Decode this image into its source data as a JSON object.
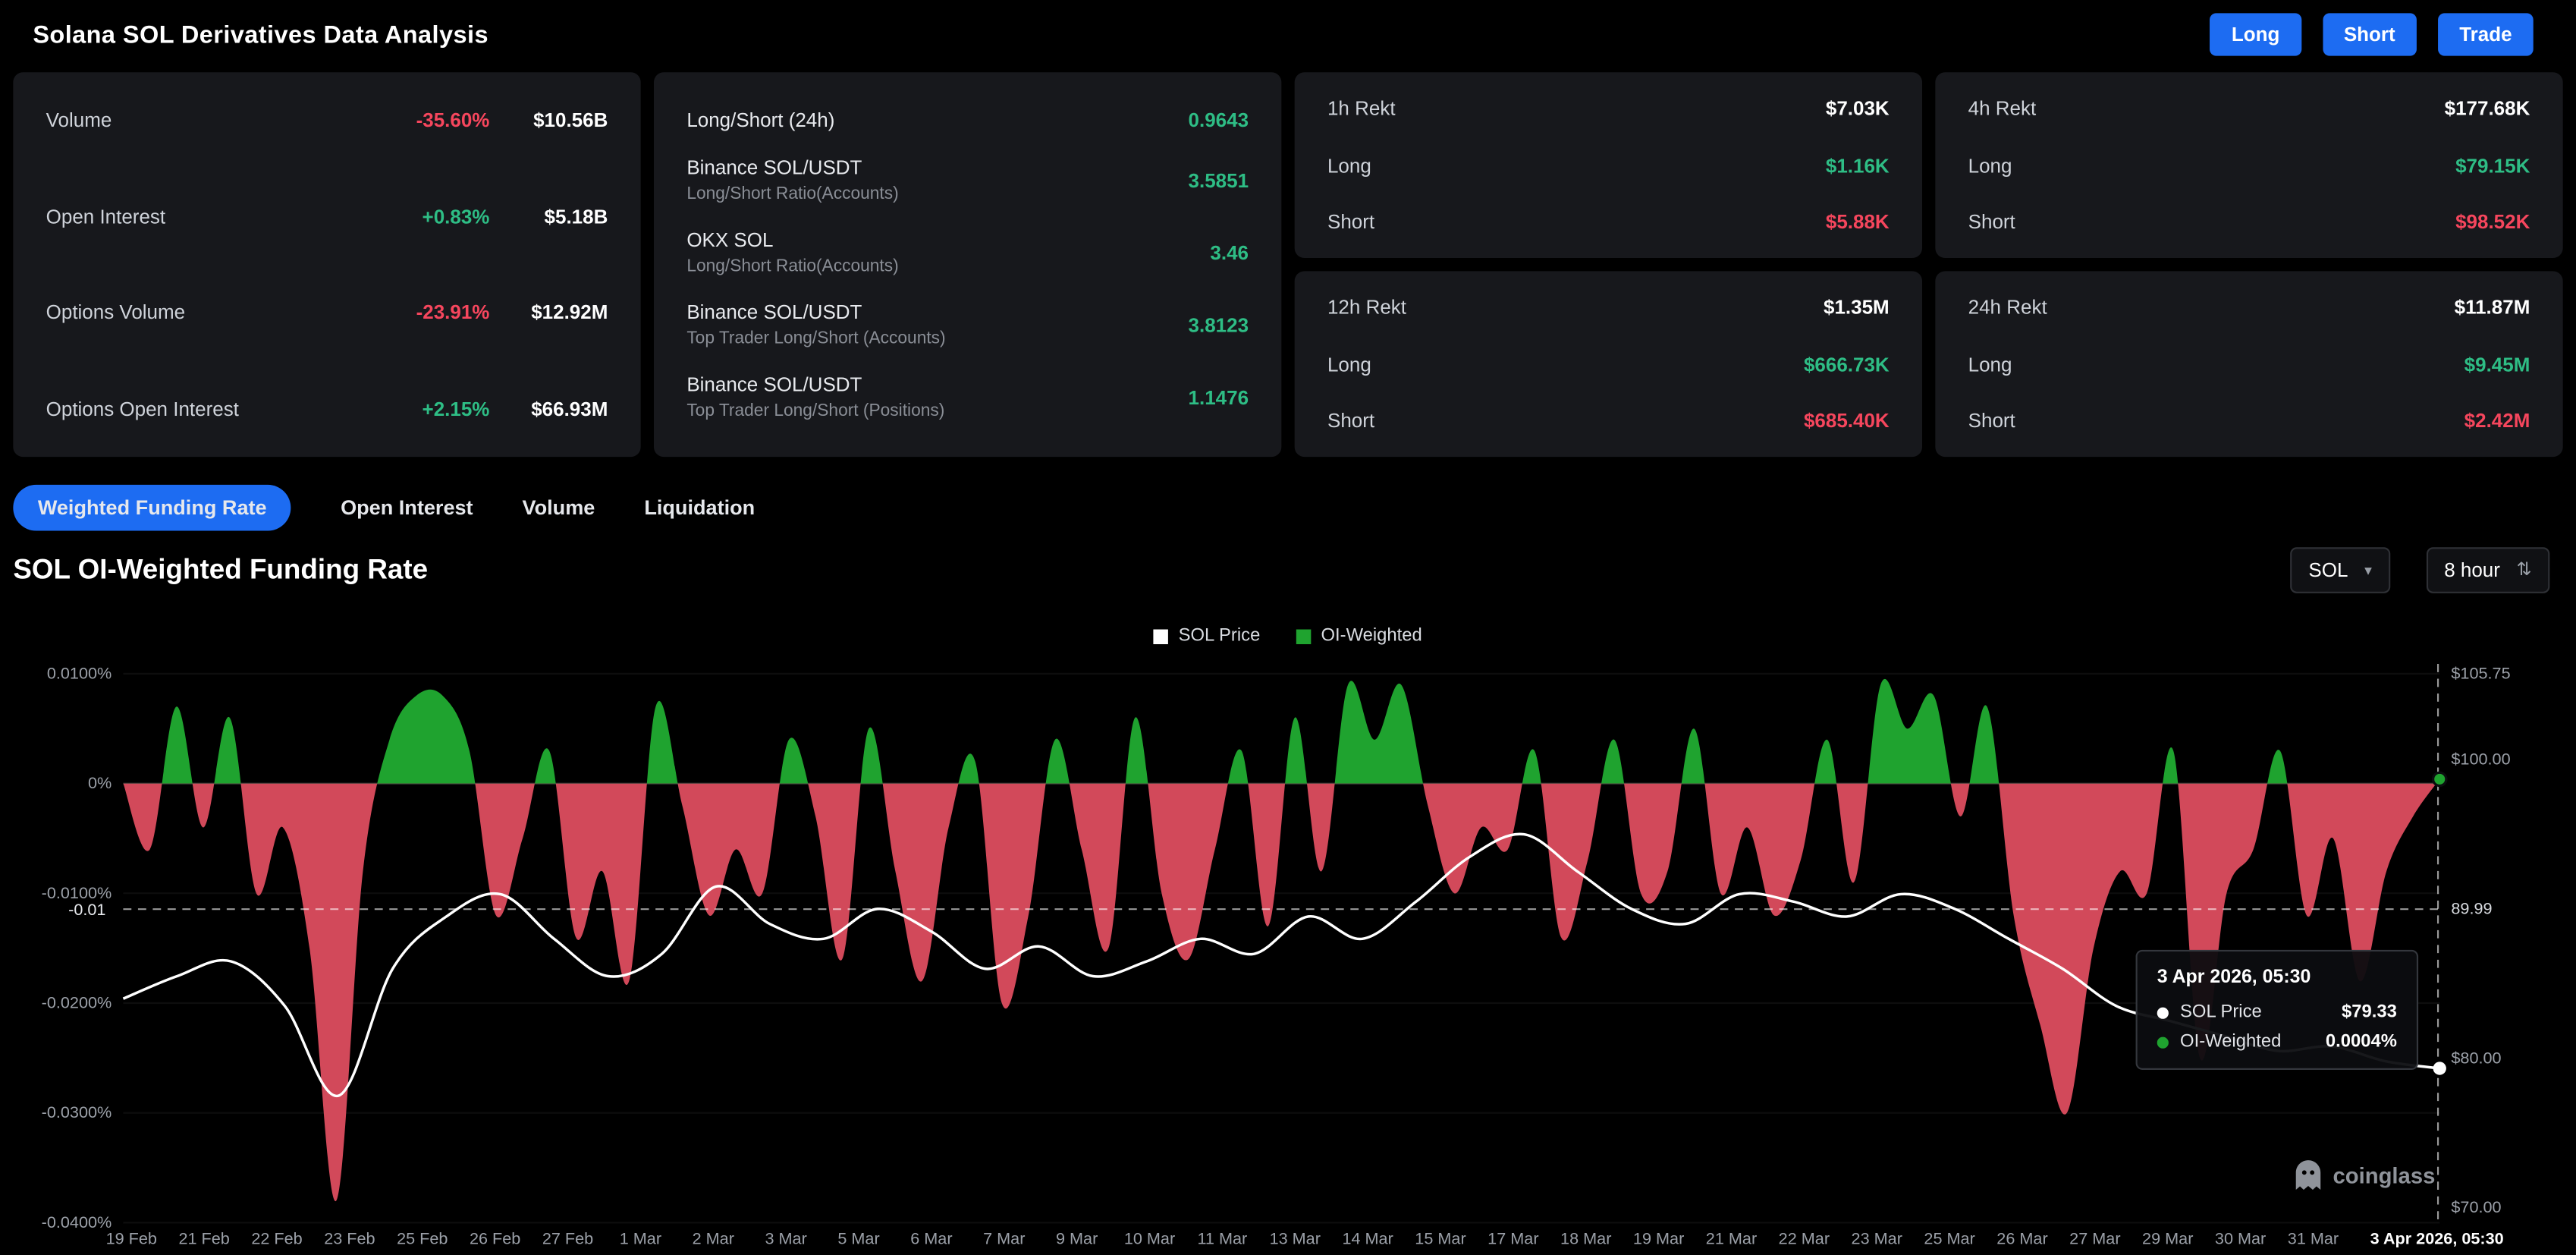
{
  "header": {
    "title": "Solana SOL Derivatives Data Analysis",
    "buttons": [
      {
        "label": "Long"
      },
      {
        "label": "Short"
      },
      {
        "label": "Trade"
      }
    ]
  },
  "stats": {
    "rows": [
      {
        "label": "Volume",
        "change": "-35.60%",
        "dir": "neg",
        "value": "$10.56B"
      },
      {
        "label": "Open Interest",
        "change": "+0.83%",
        "dir": "pos",
        "value": "$5.18B"
      },
      {
        "label": "Options Volume",
        "change": "-23.91%",
        "dir": "neg",
        "value": "$12.92M"
      },
      {
        "label": "Options Open Interest",
        "change": "+2.15%",
        "dir": "pos",
        "value": "$66.93M"
      }
    ]
  },
  "ratios": {
    "rows": [
      {
        "label": "Long/Short (24h)",
        "sublabel": "",
        "value": "0.9643"
      },
      {
        "label": "Binance SOL/USDT",
        "sublabel": "Long/Short Ratio(Accounts)",
        "value": "3.5851"
      },
      {
        "label": "OKX SOL",
        "sublabel": "Long/Short Ratio(Accounts)",
        "value": "3.46"
      },
      {
        "label": "Binance SOL/USDT",
        "sublabel": "Top Trader Long/Short (Accounts)",
        "value": "3.8123"
      },
      {
        "label": "Binance SOL/USDT",
        "sublabel": "Top Trader Long/Short (Positions)",
        "value": "1.1476"
      }
    ]
  },
  "liquidations": {
    "long_label": "Long",
    "short_label": "Short",
    "cards": [
      {
        "title": "1h Rekt",
        "total": "$7.03K",
        "long": "$1.16K",
        "short": "$5.88K"
      },
      {
        "title": "4h Rekt",
        "total": "$177.68K",
        "long": "$79.15K",
        "short": "$98.52K"
      },
      {
        "title": "12h Rekt",
        "total": "$1.35M",
        "long": "$666.73K",
        "short": "$685.40K"
      },
      {
        "title": "24h Rekt",
        "total": "$11.87M",
        "long": "$9.45M",
        "short": "$2.42M"
      }
    ]
  },
  "tabs": [
    {
      "label": "Weighted Funding Rate",
      "active": true
    },
    {
      "label": "Open Interest"
    },
    {
      "label": "Volume"
    },
    {
      "label": "Liquidation"
    }
  ],
  "section": {
    "title": "SOL OI-Weighted Funding Rate",
    "coin": "SOL",
    "interval": "8 hour"
  },
  "icons": {
    "caret_down": "▾",
    "caret_updown": "⇅"
  },
  "chart_data": {
    "type": "area+line",
    "title": "SOL OI-Weighted Funding Rate",
    "legend": [
      {
        "name": "SOL Price",
        "color": "#ffffff"
      },
      {
        "name": "OI-Weighted",
        "color": "#1fa32f"
      }
    ],
    "colors": {
      "funding_pos": "#1fa32f",
      "funding_neg": "#d2495a",
      "price": "#ffffff"
    },
    "y_left": {
      "min": -0.04,
      "max": 0.01,
      "values": [
        0.01,
        0,
        -0.01,
        -0.02,
        -0.03,
        -0.04
      ],
      "labels": [
        "0.0100%",
        "0%",
        "-0.0100%",
        "-0.0200%",
        "-0.0300%",
        "-0.0400%"
      ]
    },
    "y_right": {
      "min": 69.0,
      "max": 105.75,
      "ticks": [
        {
          "label": "$105.75",
          "value": 105.75
        },
        {
          "label": "$100.00",
          "value": 100.0
        },
        {
          "label": "89.99",
          "value": 89.99
        },
        {
          "label": "$80.00",
          "value": 80.0
        },
        {
          "label": "$70.00",
          "value": 70.0
        }
      ]
    },
    "x_ticks": [
      "19 Feb",
      "21 Feb",
      "22 Feb",
      "23 Feb",
      "25 Feb",
      "26 Feb",
      "27 Feb",
      "1 Mar",
      "2 Mar",
      "3 Mar",
      "5 Mar",
      "6 Mar",
      "7 Mar",
      "9 Mar",
      "10 Mar",
      "11 Mar",
      "13 Mar",
      "14 Mar",
      "15 Mar",
      "17 Mar",
      "18 Mar",
      "19 Mar",
      "21 Mar",
      "22 Mar",
      "23 Mar",
      "25 Mar",
      "26 Mar",
      "27 Mar",
      "29 Mar",
      "30 Mar",
      "31 Mar"
    ],
    "x_current": "3 Apr 2026, 05:30",
    "series": {
      "funding_pct": [
        0.0,
        -0.006,
        0.007,
        -0.004,
        0.006,
        -0.01,
        -0.004,
        -0.015,
        -0.038,
        -0.008,
        0.004,
        0.008,
        0.008,
        0.003,
        -0.012,
        -0.005,
        0.003,
        -0.014,
        -0.008,
        -0.018,
        0.007,
        -0.002,
        -0.012,
        -0.006,
        -0.01,
        0.004,
        -0.003,
        -0.016,
        0.005,
        -0.008,
        -0.018,
        -0.004,
        0.002,
        -0.02,
        -0.012,
        0.004,
        -0.006,
        -0.015,
        0.006,
        -0.01,
        -0.016,
        -0.006,
        0.003,
        -0.013,
        0.006,
        -0.008,
        0.009,
        0.004,
        0.009,
        -0.002,
        -0.01,
        -0.004,
        -0.006,
        0.003,
        -0.014,
        -0.007,
        0.004,
        -0.01,
        -0.008,
        0.005,
        -0.01,
        -0.004,
        -0.012,
        -0.007,
        0.004,
        -0.009,
        0.009,
        0.005,
        0.008,
        -0.003,
        0.007,
        -0.012,
        -0.022,
        -0.03,
        -0.015,
        -0.008,
        -0.01,
        0.003,
        -0.025,
        -0.01,
        -0.006,
        0.003,
        -0.012,
        -0.005,
        -0.018,
        -0.008,
        -0.003,
        0.0004
      ],
      "price_usd": [
        84.0,
        85.5,
        86.5,
        83.5,
        77.5,
        86.0,
        89.5,
        91.0,
        88.0,
        85.5,
        87.0,
        91.5,
        89.0,
        88.0,
        90.0,
        88.5,
        86.0,
        87.5,
        85.5,
        86.5,
        88.0,
        87.0,
        89.5,
        88.0,
        90.5,
        93.5,
        95.0,
        92.5,
        90.0,
        89.0,
        91.0,
        90.5,
        89.5,
        91.0,
        90.0,
        88.0,
        86.0,
        83.5,
        82.5,
        81.5,
        80.5,
        80.8,
        79.8,
        79.33
      ]
    },
    "crosshair": {
      "left_label": "-0.01",
      "right_label": "89.99",
      "price": 89.99
    },
    "tooltip": {
      "title": "3 Apr 2026, 05:30",
      "rows": [
        {
          "label": "SOL Price",
          "value": "$79.33"
        },
        {
          "label": "OI-Weighted",
          "value": "0.0004%"
        }
      ]
    },
    "watermark": "coinglass"
  }
}
